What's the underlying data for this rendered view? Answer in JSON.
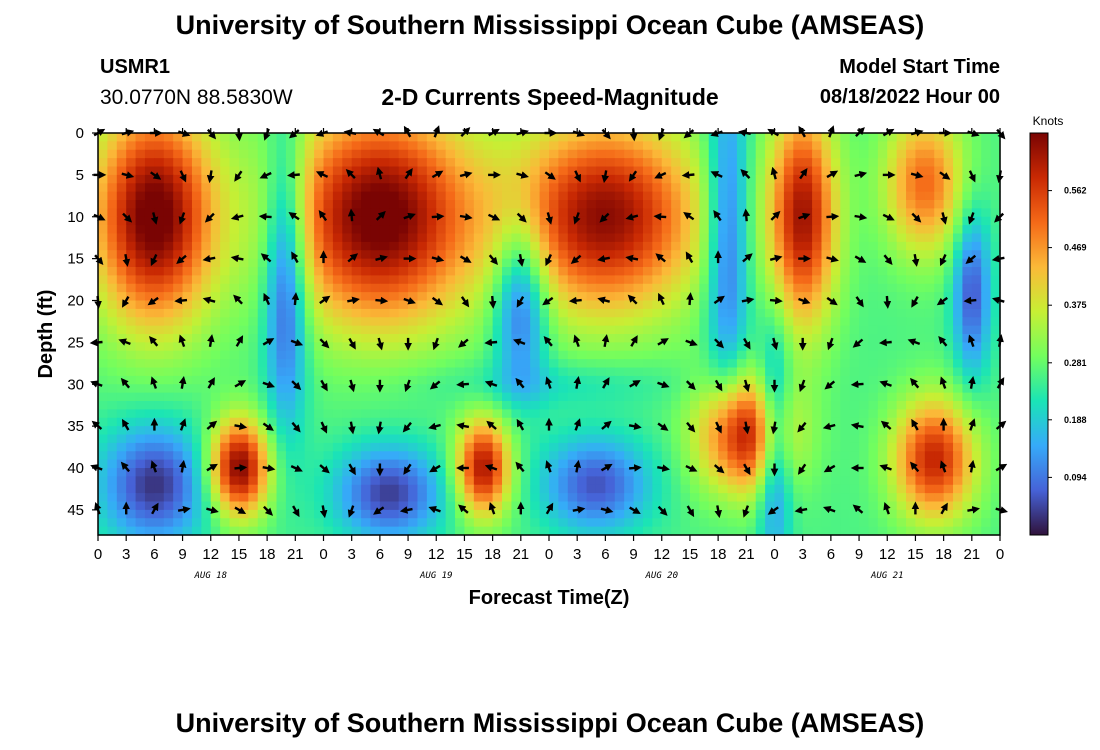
{
  "header": {
    "title": "University of Southern Mississippi Ocean Cube (AMSEAS)",
    "station": "USMR1",
    "coords": "30.0770N  88.5830W",
    "subtitle": "2-D Currents Speed-Magnitude",
    "model_start_label": "Model Start Time",
    "model_start_value": "08/18/2022 Hour 00"
  },
  "footer": {
    "title": "University of Southern Mississippi Ocean Cube (AMSEAS)"
  },
  "colors": {
    "ramp": [
      "#30123b",
      "#4662d7",
      "#36aaf9",
      "#1ae4b6",
      "#72fe5e",
      "#c7ef34",
      "#fbb938",
      "#f56918",
      "#c92903",
      "#7a0403"
    ]
  },
  "chart_data": {
    "type": "heatmap",
    "title": "2-D Currents Speed-Magnitude",
    "xlabel": "Forecast Time(Z)",
    "ylabel": "Depth (ft)",
    "colorbar_label": "Knots",
    "xlim": [
      0,
      96
    ],
    "ylim": [
      48,
      0
    ],
    "x_ticks": [
      0,
      3,
      6,
      9,
      12,
      15,
      18,
      21,
      24,
      27,
      30,
      33,
      36,
      39,
      42,
      45,
      48,
      51,
      54,
      57,
      60,
      63,
      66,
      69,
      72,
      75,
      78,
      81,
      84,
      87,
      90,
      93,
      96
    ],
    "x_tick_labels": [
      "0",
      "3",
      "6",
      "9",
      "12",
      "15",
      "18",
      "21",
      "0",
      "3",
      "6",
      "9",
      "12",
      "15",
      "18",
      "21",
      "0",
      "3",
      "6",
      "9",
      "12",
      "15",
      "18",
      "21",
      "0",
      "3",
      "6",
      "9",
      "12",
      "15",
      "18",
      "21",
      "0"
    ],
    "day_labels": [
      {
        "x": 12,
        "text": "AUG 18"
      },
      {
        "x": 36,
        "text": "AUG 19"
      },
      {
        "x": 60,
        "text": "AUG 20"
      },
      {
        "x": 84,
        "text": "AUG 21"
      }
    ],
    "y_ticks": [
      0,
      5,
      10,
      15,
      20,
      25,
      30,
      35,
      40,
      45
    ],
    "y_tick_labels": [
      "0",
      "5",
      "10",
      "15",
      "20",
      "25",
      "30",
      "35",
      "40",
      "45"
    ],
    "colorbar": {
      "min": 0.0,
      "max": 0.656,
      "ticks": [
        0.094,
        0.188,
        0.281,
        0.375,
        0.469,
        0.562
      ],
      "tick_labels": [
        "0.094",
        "0.188",
        "0.281",
        "0.375",
        "0.469",
        "0.562"
      ]
    },
    "speed_field": {
      "background": 0.26,
      "blobs": [
        {
          "x": 6,
          "y": 10,
          "sx": 4.5,
          "sy": 9,
          "v": 0.42
        },
        {
          "x": 15,
          "y": 40,
          "sx": 2.2,
          "sy": 4,
          "v": 0.4
        },
        {
          "x": 30,
          "y": 10,
          "sx": 7,
          "sy": 9,
          "v": 0.42
        },
        {
          "x": 41,
          "y": 40,
          "sx": 2,
          "sy": 4,
          "v": 0.36
        },
        {
          "x": 54,
          "y": 10,
          "sx": 7,
          "sy": 8,
          "v": 0.38
        },
        {
          "x": 69,
          "y": 36,
          "sx": 3.5,
          "sy": 5,
          "v": 0.36
        },
        {
          "x": 75,
          "y": 10,
          "sx": 2.5,
          "sy": 9,
          "v": 0.36
        },
        {
          "x": 88,
          "y": 6,
          "sx": 3,
          "sy": 6,
          "v": 0.25
        },
        {
          "x": 89,
          "y": 39,
          "sx": 3,
          "sy": 5,
          "v": 0.33
        },
        {
          "x": 20,
          "y": 17,
          "sx": 1.6,
          "sy": 12,
          "v": -0.24
        },
        {
          "x": 45,
          "y": 20,
          "sx": 2,
          "sy": 7,
          "v": -0.22
        },
        {
          "x": 67,
          "y": 12,
          "sx": 1.6,
          "sy": 14,
          "v": -0.2
        },
        {
          "x": 72,
          "y": 37,
          "sx": 1.3,
          "sy": 9,
          "v": -0.22
        },
        {
          "x": 93,
          "y": 19,
          "sx": 1.4,
          "sy": 7,
          "v": -0.2
        },
        {
          "x": 6,
          "y": 42,
          "sx": 4,
          "sy": 5,
          "v": -0.23
        },
        {
          "x": 31,
          "y": 43,
          "sx": 4,
          "sy": 4,
          "v": -0.22
        },
        {
          "x": 53,
          "y": 42,
          "sx": 4,
          "sy": 4,
          "v": -0.2
        },
        {
          "x": 48,
          "y": 30,
          "sx": 10,
          "sy": 2,
          "v": -0.05
        }
      ]
    },
    "vectors": {
      "x_positions": [
        0,
        3,
        6,
        9,
        12,
        15,
        18,
        21,
        24,
        27,
        30,
        33,
        36,
        39,
        42,
        45,
        48,
        51,
        54,
        57,
        60,
        63,
        66,
        69,
        72,
        75,
        78,
        81,
        84,
        87,
        90,
        93,
        96
      ],
      "depths": [
        0,
        5,
        10,
        15,
        20,
        25,
        30,
        35,
        40,
        45
      ],
      "direction_sequence_deg": [
        60,
        75,
        90,
        110,
        140,
        175,
        200,
        230,
        250,
        280,
        300,
        330,
        20,
        45
      ],
      "angle_offset_by_depth_deg": [
        0,
        15,
        25,
        30,
        35,
        90,
        90,
        80,
        40,
        60
      ]
    }
  }
}
